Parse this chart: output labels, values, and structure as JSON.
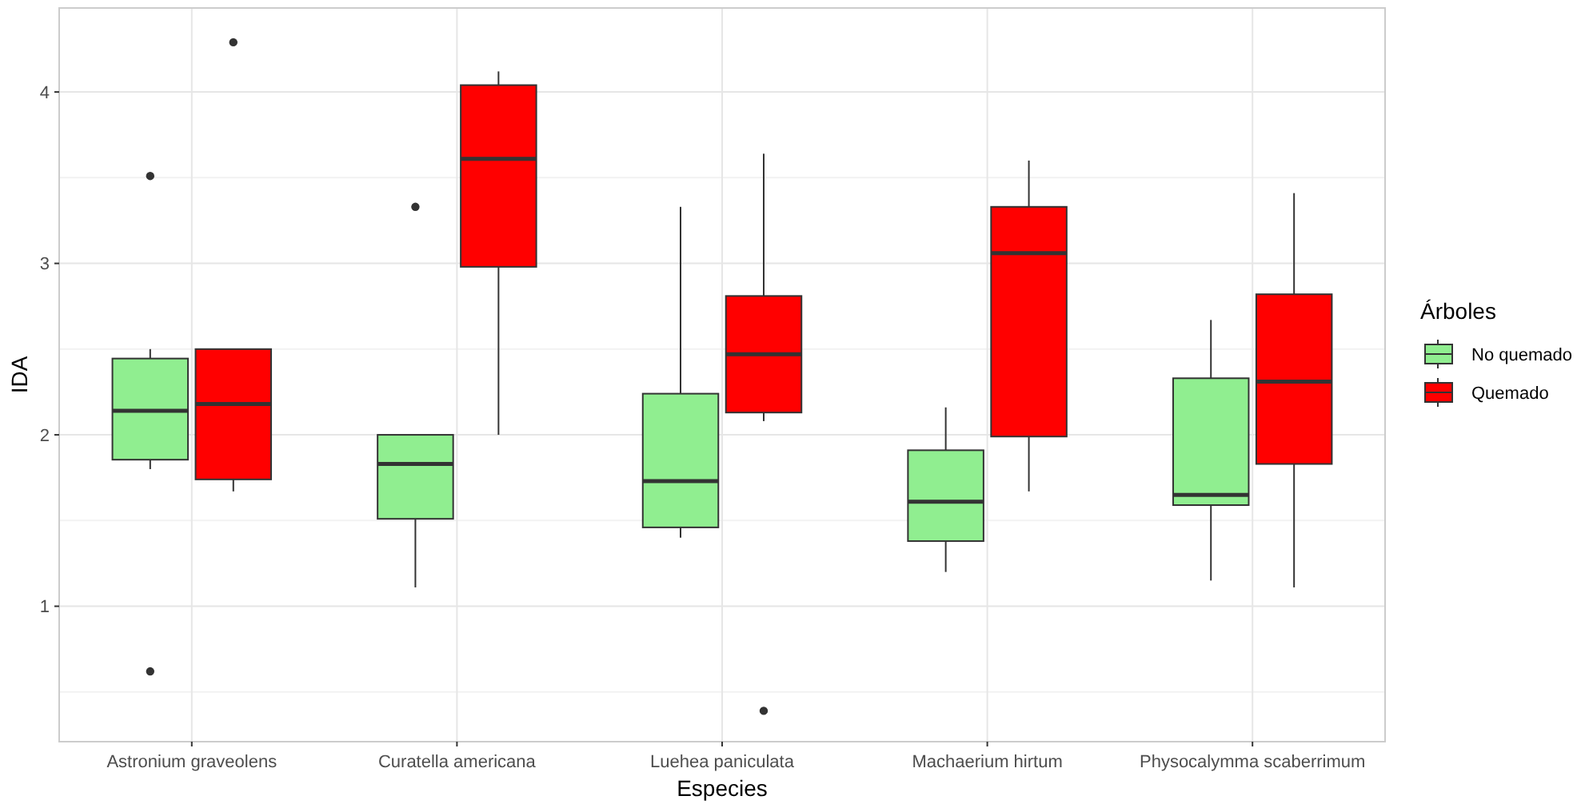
{
  "chart_data": {
    "type": "box",
    "xlabel": "Especies",
    "ylabel": "IDA",
    "legend_title": "Árboles",
    "legend": "right",
    "grid": true,
    "categories": [
      "Astronium graveolens",
      "Curatella americana",
      "Luehea paniculata",
      "Machaerium hirtum",
      "Physocalymma scaberrimum"
    ],
    "ylim": [
      0.21,
      4.49
    ],
    "yticks": [
      1,
      2,
      3,
      4
    ],
    "series": [
      {
        "name": "No quemado",
        "color": "#90ee90",
        "boxes": [
          {
            "low": 1.8,
            "q1": 1.855,
            "median": 2.14,
            "q3": 2.445,
            "high": 2.5,
            "outliers": [
              3.51,
              0.62
            ]
          },
          {
            "low": 1.11,
            "q1": 1.51,
            "median": 1.83,
            "q3": 2.0,
            "high": 2.0,
            "outliers": [
              3.33
            ]
          },
          {
            "low": 1.4,
            "q1": 1.46,
            "median": 1.73,
            "q3": 2.24,
            "high": 3.33
          },
          {
            "low": 1.2,
            "q1": 1.38,
            "median": 1.61,
            "q3": 1.91,
            "high": 2.16
          },
          {
            "low": 1.15,
            "q1": 1.59,
            "median": 1.65,
            "q3": 2.33,
            "high": 2.67
          }
        ]
      },
      {
        "name": "Quemado",
        "color": "#ff0000",
        "boxes": [
          {
            "low": 1.67,
            "q1": 1.74,
            "median": 2.18,
            "q3": 2.5,
            "high": 2.5,
            "outliers": [
              4.29
            ]
          },
          {
            "low": 2.0,
            "q1": 2.98,
            "median": 3.61,
            "q3": 4.04,
            "high": 4.12
          },
          {
            "low": 2.08,
            "q1": 2.13,
            "median": 2.47,
            "q3": 2.81,
            "high": 3.64,
            "outliers": [
              0.39
            ]
          },
          {
            "low": 1.67,
            "q1": 1.99,
            "median": 3.06,
            "q3": 3.33,
            "high": 3.6
          },
          {
            "low": 1.11,
            "q1": 1.83,
            "median": 2.31,
            "q3": 2.82,
            "high": 3.41
          }
        ]
      }
    ]
  }
}
